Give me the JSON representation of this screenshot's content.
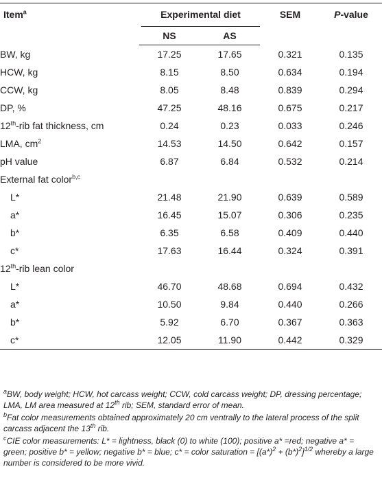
{
  "header": {
    "item": "Item",
    "item_sup": "a",
    "experimental_diet": "Experimental diet",
    "ns": "NS",
    "as": "AS",
    "sem": "SEM",
    "pvalue_p": "P",
    "pvalue_rest": "-value"
  },
  "rows": [
    {
      "label": "BW, kg",
      "ns": "17.25",
      "as": "17.65",
      "sem": "0.321",
      "p": "0.135"
    },
    {
      "label": "HCW, kg",
      "ns": "8.15",
      "as": "8.50",
      "sem": "0.634",
      "p": "0.194"
    },
    {
      "label": "CCW, kg",
      "ns": "8.05",
      "as": "8.48",
      "sem": "0.839",
      "p": "0.294"
    },
    {
      "label": "DP, %",
      "ns": "47.25",
      "as": "48.16",
      "sem": "0.675",
      "p": "0.217"
    },
    {
      "label_pre": "12",
      "label_sup": "th",
      "label_post": "-rib fat thickness, cm",
      "ns": "0.24",
      "as": "0.23",
      "sem": "0.033",
      "p": "0.246"
    },
    {
      "label_pre": "LMA, cm",
      "label_sup": "2",
      "label_post": "",
      "ns": "14.53",
      "as": "14.50",
      "sem": "0.642",
      "p": "0.157"
    },
    {
      "label": "pH value",
      "ns": "6.87",
      "as": "6.84",
      "sem": "0.532",
      "p": "0.214"
    }
  ],
  "fat_section": {
    "label": "External fat color",
    "label_sup": "b,c",
    "rows": [
      {
        "label": "L*",
        "ns": "21.48",
        "as": "21.90",
        "sem": "0.639",
        "p": "0.589"
      },
      {
        "label": "a*",
        "ns": "16.45",
        "as": "15.07",
        "sem": "0.306",
        "p": "0.235"
      },
      {
        "label": "b*",
        "ns": "6.35",
        "as": "6.58",
        "sem": "0.409",
        "p": "0.440"
      },
      {
        "label": "c*",
        "ns": "17.63",
        "as": "16.44",
        "sem": "0.324",
        "p": "0.391"
      }
    ]
  },
  "lean_section": {
    "label_pre": "12",
    "label_sup": "th",
    "label_post": "-rib lean color",
    "rows": [
      {
        "label": "L*",
        "ns": "46.70",
        "as": "48.68",
        "sem": "0.694",
        "p": "0.432"
      },
      {
        "label": "a*",
        "ns": "10.50",
        "as": "9.84",
        "sem": "0.440",
        "p": "0.266"
      },
      {
        "label": "b*",
        "ns": "5.92",
        "as": "6.70",
        "sem": "0.367",
        "p": "0.363"
      },
      {
        "label": "c*",
        "ns": "12.05",
        "as": "11.90",
        "sem": "0.442",
        "p": "0.329"
      }
    ]
  },
  "footnotes": {
    "a": {
      "mark": "a",
      "text1": "BW, body weight; HCW, hot carcass weight; CCW, cold carcass weight; DP, dressing percentage; LMA, LM area measured at 12",
      "sup": "th",
      "text2": " rib; SEM, standard error of mean."
    },
    "b": {
      "mark": "b",
      "text1": "Fat color measurements obtained approximately 20 cm ventrally to the lateral process of the split carcass adjacent the 13",
      "sup": "th",
      "text2": " rib."
    },
    "c": {
      "mark": "c",
      "text": "CIE color measurements: L* = lightness, black (0) to white (100); positive a* =red; negative a* = green; positive b* = yellow; negative b* = blue; c* = color saturation = [(a*)",
      "sup1": "2",
      "mid": " + (b*)",
      "sup2": "2",
      "end_bracket": "]",
      "sup3": "1/2",
      "tail": " whereby a large number is considered to be more vivid."
    }
  }
}
